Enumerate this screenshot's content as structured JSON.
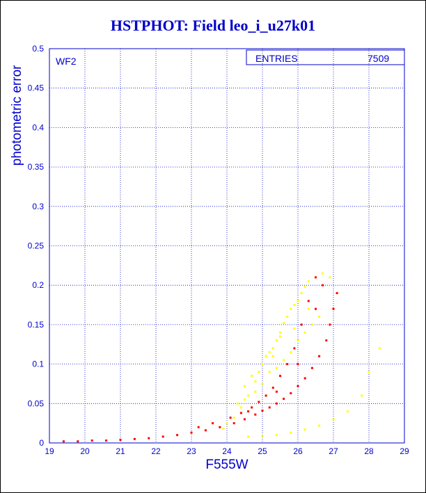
{
  "title": "HSTPHOT: Field leo_i_u27k01",
  "colors": {
    "axis": "#0000cc",
    "grid": "#0000cc",
    "series_red": "#ff0000",
    "series_yellow": "#ffff00"
  },
  "chart_data": {
    "type": "scatter",
    "title": "HSTPHOT: Field leo_i_u27k01",
    "panel_label": "WF2",
    "stats_box": {
      "label": "ENTRIES",
      "value": "7509"
    },
    "xlabel": "F555W",
    "ylabel": "photometric error",
    "xlim": [
      19,
      29
    ],
    "ylim": [
      0,
      0.5
    ],
    "xticks": [
      "19",
      "20",
      "21",
      "22",
      "23",
      "24",
      "25",
      "26",
      "27",
      "28",
      "29"
    ],
    "yticks": [
      "0",
      "0.05",
      "0.1",
      "0.15",
      "0.2",
      "0.25",
      "0.3",
      "0.35",
      "0.4",
      "0.45",
      "0.5"
    ],
    "grid": true,
    "series": [
      {
        "color": "#ffff00",
        "points": [
          [
            23.9,
            0.018
          ],
          [
            24.2,
            0.032
          ],
          [
            24.4,
            0.045
          ],
          [
            24.6,
            0.06
          ],
          [
            24.8,
            0.078
          ],
          [
            24.9,
            0.09
          ],
          [
            25.0,
            0.1
          ],
          [
            25.1,
            0.11
          ],
          [
            25.2,
            0.115
          ],
          [
            25.3,
            0.12
          ],
          [
            25.4,
            0.13
          ],
          [
            25.5,
            0.14
          ],
          [
            25.6,
            0.152
          ],
          [
            25.7,
            0.16
          ],
          [
            25.8,
            0.17
          ],
          [
            25.9,
            0.175
          ],
          [
            26.0,
            0.18
          ],
          [
            26.1,
            0.19
          ],
          [
            26.2,
            0.198
          ],
          [
            26.3,
            0.205
          ],
          [
            26.5,
            0.21
          ],
          [
            26.7,
            0.215
          ],
          [
            26.9,
            0.21
          ],
          [
            24.0,
            0.025
          ],
          [
            24.3,
            0.05
          ],
          [
            24.5,
            0.072
          ],
          [
            24.7,
            0.085
          ],
          [
            25.0,
            0.075
          ],
          [
            25.2,
            0.09
          ],
          [
            25.4,
            0.095
          ],
          [
            25.6,
            0.105
          ],
          [
            25.8,
            0.115
          ],
          [
            26.0,
            0.13
          ],
          [
            26.2,
            0.14
          ],
          [
            26.4,
            0.15
          ],
          [
            26.6,
            0.16
          ],
          [
            25.5,
            0.135
          ],
          [
            25.3,
            0.11
          ],
          [
            24.8,
            0.065
          ],
          [
            24.5,
            0.055
          ],
          [
            25.9,
            0.145
          ],
          [
            26.3,
            0.17
          ],
          [
            24.6,
            0.008
          ],
          [
            25.0,
            0.009
          ],
          [
            25.4,
            0.01
          ],
          [
            25.8,
            0.013
          ],
          [
            26.2,
            0.017
          ],
          [
            26.6,
            0.022
          ],
          [
            27.0,
            0.03
          ],
          [
            27.4,
            0.04
          ],
          [
            27.8,
            0.06
          ],
          [
            28.0,
            0.09
          ],
          [
            28.3,
            0.12
          ]
        ]
      },
      {
        "color": "#ff0000",
        "points": [
          [
            19.4,
            0.002
          ],
          [
            19.8,
            0.002
          ],
          [
            20.2,
            0.003
          ],
          [
            20.6,
            0.003
          ],
          [
            21.0,
            0.004
          ],
          [
            21.4,
            0.005
          ],
          [
            21.8,
            0.006
          ],
          [
            22.2,
            0.008
          ],
          [
            22.6,
            0.01
          ],
          [
            23.0,
            0.013
          ],
          [
            23.4,
            0.016
          ],
          [
            23.8,
            0.02
          ],
          [
            24.2,
            0.025
          ],
          [
            24.5,
            0.03
          ],
          [
            24.8,
            0.036
          ],
          [
            25.0,
            0.041
          ],
          [
            25.2,
            0.045
          ],
          [
            25.4,
            0.05
          ],
          [
            25.6,
            0.056
          ],
          [
            25.8,
            0.063
          ],
          [
            26.0,
            0.072
          ],
          [
            26.2,
            0.082
          ],
          [
            26.4,
            0.095
          ],
          [
            26.6,
            0.11
          ],
          [
            26.8,
            0.13
          ],
          [
            26.9,
            0.15
          ],
          [
            27.0,
            0.17
          ],
          [
            27.1,
            0.19
          ],
          [
            26.5,
            0.21
          ],
          [
            26.3,
            0.18
          ],
          [
            26.1,
            0.15
          ],
          [
            25.9,
            0.12
          ],
          [
            25.7,
            0.1
          ],
          [
            25.5,
            0.085
          ],
          [
            25.3,
            0.07
          ],
          [
            25.1,
            0.06
          ],
          [
            24.9,
            0.052
          ],
          [
            24.7,
            0.045
          ],
          [
            24.4,
            0.038
          ],
          [
            24.1,
            0.032
          ],
          [
            23.6,
            0.025
          ],
          [
            23.2,
            0.02
          ],
          [
            26.7,
            0.2
          ],
          [
            26.5,
            0.17
          ],
          [
            26.0,
            0.1
          ],
          [
            25.4,
            0.065
          ],
          [
            24.6,
            0.04
          ]
        ]
      }
    ]
  }
}
